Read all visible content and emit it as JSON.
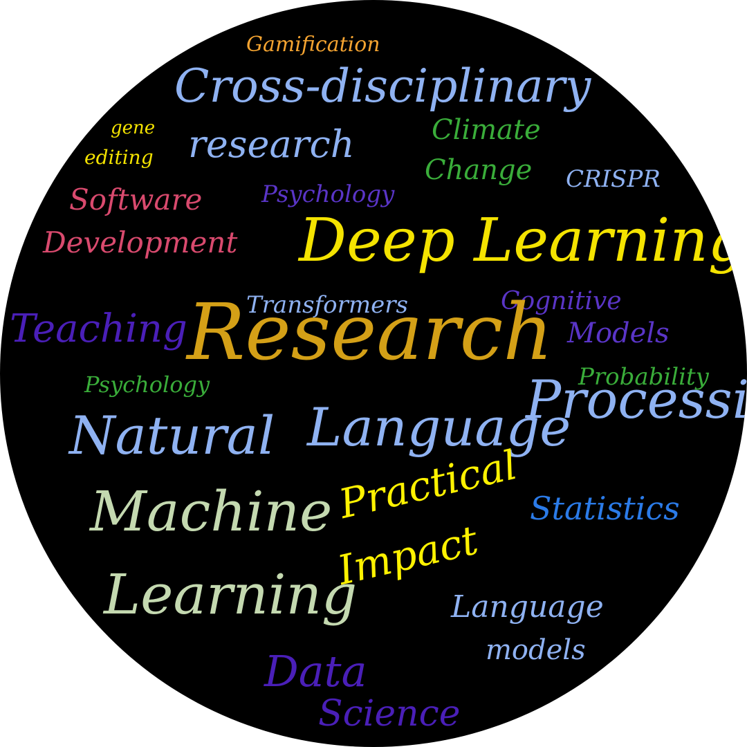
{
  "colors": {
    "background": "#000000",
    "orange": "#f5a431",
    "light_blue": "#8fb2f2",
    "yellow": "#f4e300",
    "green": "#3aad3a",
    "pink": "#d94a6e",
    "indigo": "#5a35c7",
    "violet": "#4a1fb8",
    "gold": "#d4a017",
    "sage": "#c4d9b0",
    "blue": "#2b7be8",
    "bright_yellow": "#fff200"
  },
  "words": {
    "gamification": "Gamification",
    "cross_disciplinary": "Cross-disciplinary",
    "gene": "gene",
    "editing": "editing",
    "research_small": "research",
    "climate": "Climate",
    "change": "Change",
    "crispr": "CRISPR",
    "software": "Software",
    "psychology_top": "Psychology",
    "development": "Development",
    "deep_learning": "Deep Learning",
    "cognitive": "Cognitive",
    "transformers": "Transformers",
    "teaching": "Teaching",
    "research_big": "Research",
    "models_cognitive": "Models",
    "probability": "Probability",
    "psychology_green": "Psychology",
    "natural": "Natural",
    "language": "Language",
    "processing": "Processing",
    "practical": "Practical",
    "statistics": "Statistics",
    "machine": "Machine",
    "impact": "Impact",
    "learning": "Learning",
    "language_lm": "Language",
    "models_lm": "models",
    "data": "Data",
    "science": "Science"
  }
}
